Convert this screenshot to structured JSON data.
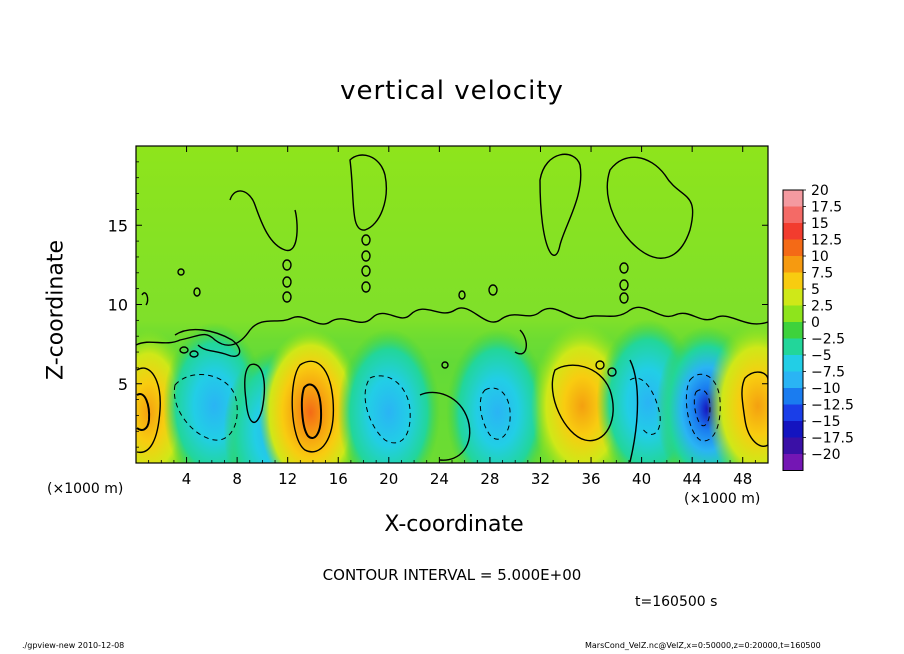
{
  "chart_data": {
    "type": "heatmap",
    "title": "vertical velocity",
    "xlabel": "X-coordinate",
    "ylabel": "Z-coordinate",
    "x_unit_label": "(×1000 m)",
    "y_unit_label": "(×1000 m)",
    "x_ticks": [
      4,
      8,
      12,
      16,
      20,
      24,
      28,
      32,
      36,
      40,
      44,
      48
    ],
    "y_ticks": [
      5,
      10,
      15
    ],
    "xlim": [
      0,
      50
    ],
    "ylim": [
      0,
      20
    ],
    "colorbar_labels": [
      "20",
      "17.5",
      "15",
      "12.5",
      "10",
      "7.5",
      "5",
      "2.5",
      "0",
      "−2.5",
      "−5",
      "−7.5",
      "−10",
      "−12.5",
      "−15",
      "−17.5",
      "−20"
    ],
    "colorbar_colors": [
      "#f49aa0",
      "#f46a66",
      "#f23c2e",
      "#f46a16",
      "#f69a10",
      "#f8cc10",
      "#cfe818",
      "#8ee41c",
      "#3ed23c",
      "#22d69a",
      "#22cee6",
      "#2ab4f4",
      "#1a7cf0",
      "#1a3ee8",
      "#1414c0",
      "#3a10a6",
      "#7416b4"
    ],
    "cells": [
      {
        "x": 1,
        "z": 3.2,
        "w": 2.4,
        "vmin": 5,
        "vmax": 10
      },
      {
        "x": 6.2,
        "z": 3.6,
        "vmin": -10,
        "vmax": -5
      },
      {
        "x": 11,
        "z": 2,
        "vmin": -7.5,
        "vmax": -2.5
      },
      {
        "x": 13.8,
        "z": 3.2,
        "vmin": 5,
        "vmax": 12.5
      },
      {
        "x": 20,
        "z": 3.2,
        "vmin": -7.5,
        "vmax": -2.5
      },
      {
        "x": 28.6,
        "z": 3.2,
        "vmin": -10,
        "vmax": -5
      },
      {
        "x": 35.3,
        "z": 3.6,
        "vmin": 5,
        "vmax": 10
      },
      {
        "x": 40.5,
        "z": 3.8,
        "vmin": -7.5,
        "vmax": -2.5
      },
      {
        "x": 45.2,
        "z": 3.4,
        "vmin": -17.5,
        "vmax": -5
      },
      {
        "x": 49.2,
        "z": 3.6,
        "vmin": 5,
        "vmax": 10
      }
    ]
  },
  "contour_interval": "CONTOUR INTERVAL = 5.000E+00",
  "time_label": "t=160500 s",
  "footer": {
    "left": "./gpview-new  2010-12-08",
    "right": "MarsCond_VelZ.nc@VelZ,x=0:50000,z=0:20000,t=160500"
  }
}
